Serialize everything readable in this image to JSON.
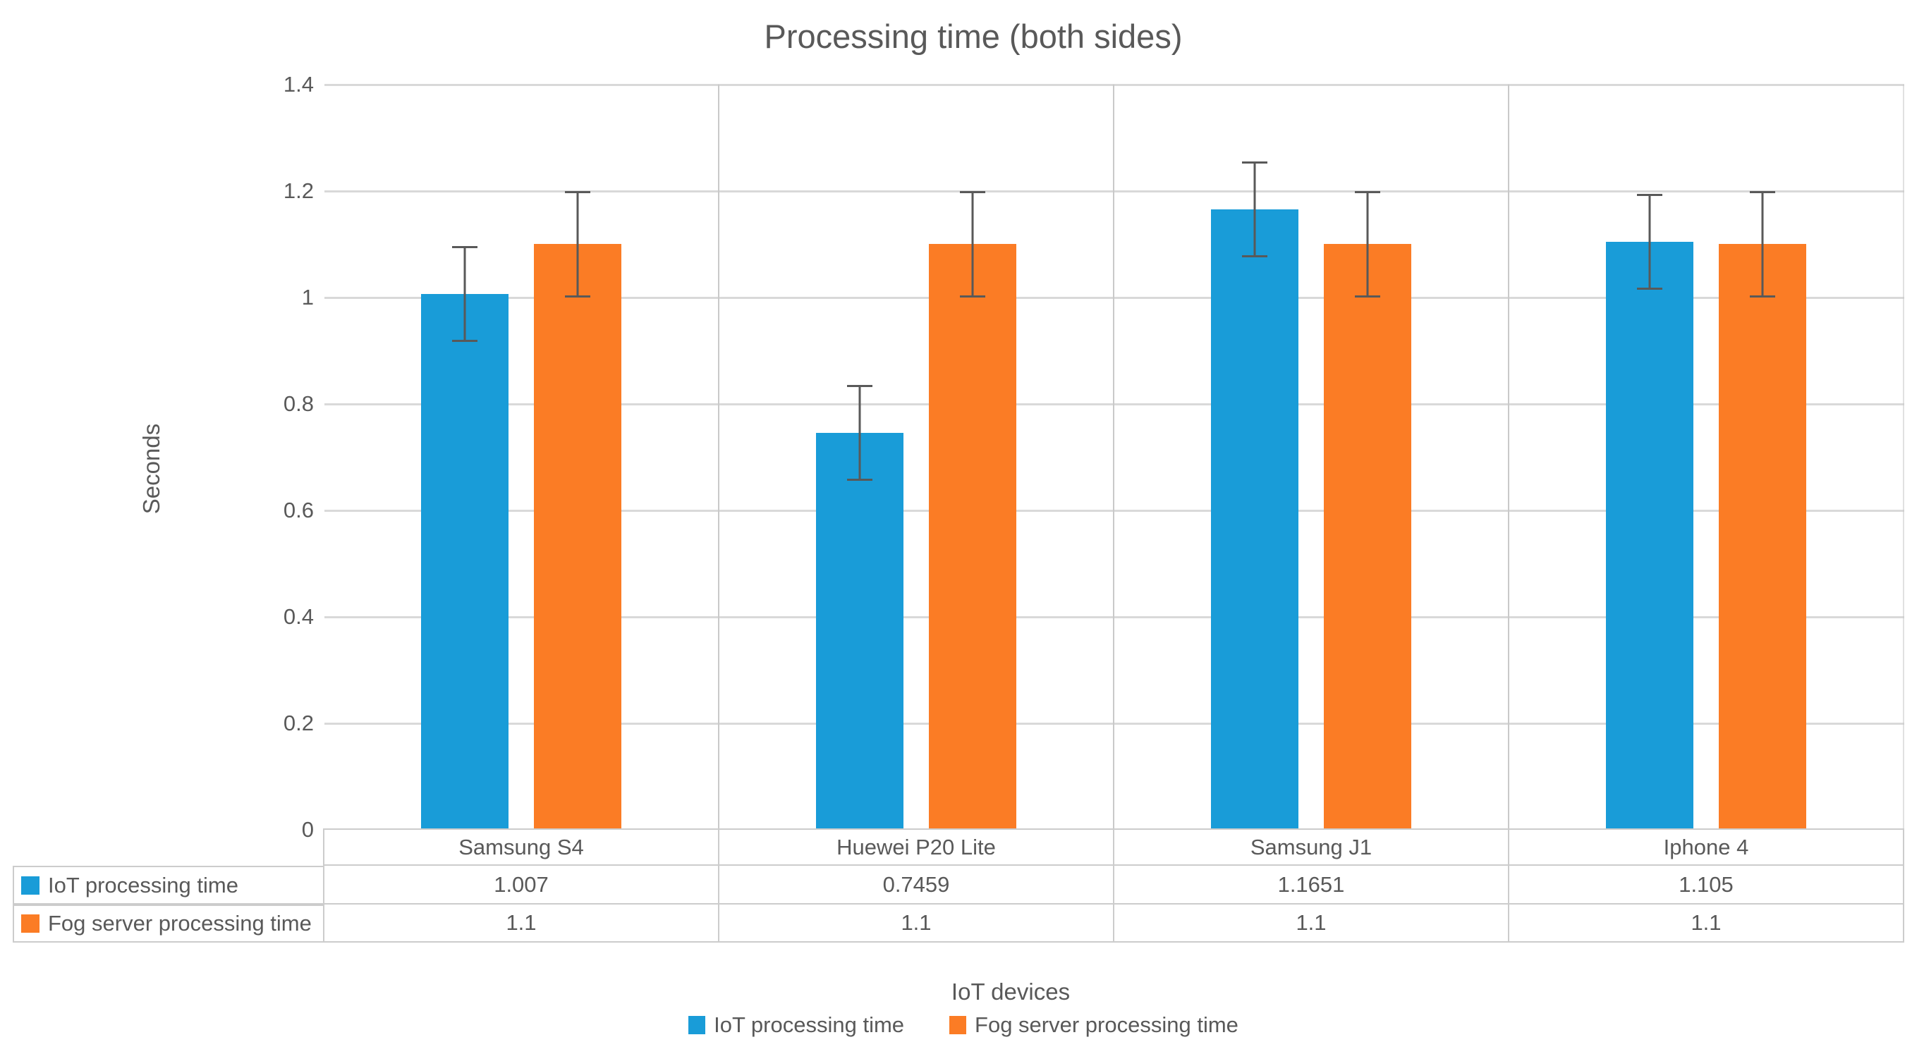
{
  "chart": {
    "title": "Processing time (both sides)",
    "ylabel": "Seconds",
    "xlabel": "IoT devices"
  },
  "chart_data": {
    "type": "bar",
    "title": "Processing time (both sides)",
    "xlabel": "IoT devices",
    "ylabel": "Seconds",
    "ylim": [
      0,
      1.4
    ],
    "grid": true,
    "legend_position": "bottom",
    "data_table_shown": true,
    "categories": [
      "Samsung S4",
      "Huewei P20 Lite",
      "Samsung J1",
      "Iphone 4"
    ],
    "series": [
      {
        "name": "IoT processing time",
        "color": "#199CD8",
        "values": [
          1.007,
          0.7459,
          1.1651,
          1.105
        ],
        "error": 0.09
      },
      {
        "name": "Fog server processing time",
        "color": "#FB7C25",
        "values": [
          1.1,
          1.1,
          1.1,
          1.1
        ],
        "error": 0.1
      }
    ],
    "yticks": {
      "labels": [
        "0",
        "0.2",
        "0.4",
        "0.6",
        "0.8",
        "1",
        "1.2",
        "1.4"
      ],
      "values": [
        0,
        0.2,
        0.4,
        0.6,
        0.8,
        1,
        1.2,
        1.4
      ]
    }
  },
  "colors": {
    "series_iot": "#199CD8",
    "series_fog": "#FB7C25",
    "gridline": "#D9D9D9",
    "category_separator": "#C9C9C9",
    "error_bar": "#595959",
    "text": "#595959",
    "table_border": "#CCCCCC"
  }
}
